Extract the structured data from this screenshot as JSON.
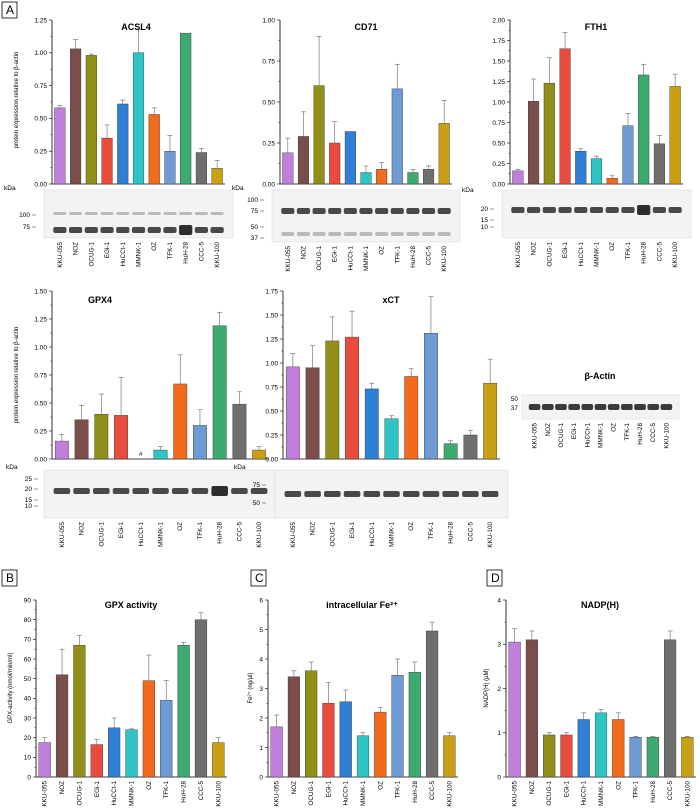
{
  "panel_labels": [
    "A",
    "B",
    "C",
    "D"
  ],
  "categories": [
    "KKU-055",
    "NOZ",
    "OCUG-1",
    "EGi-1",
    "HuCCt-1",
    "MMNK-1",
    "OZ",
    "TFK-1",
    "HuH-28",
    "CCC-5",
    "KKU-100"
  ],
  "bar_colors": [
    "#c17fdc",
    "#7a4f4b",
    "#8f8f1a",
    "#e74c3c",
    "#2f7fd6",
    "#2ec4c4",
    "#f26a1b",
    "#6e9bd3",
    "#3daa70",
    "#6f6f6f",
    "#c9a014"
  ],
  "kda_label": "kDa",
  "shared_ylabel": "protein expression relative to β-actin",
  "chart_data": [
    {
      "id": "acsl4",
      "type": "bar",
      "title": "ACSL4",
      "ylabel": "protein expression relative to β-actin",
      "ylim": [
        0,
        1.25
      ],
      "yticks": [
        "0.00",
        "0.25",
        "0.50",
        "0.75",
        "1.00",
        "1.25"
      ],
      "categories": [
        "KKU-055",
        "NOZ",
        "OCUG-1",
        "EGi-1",
        "HuCCt-1",
        "MMNK-1",
        "OZ",
        "TFK-1",
        "HuH-28",
        "CCC-5",
        "KKU-100"
      ],
      "values": [
        0.58,
        1.03,
        0.98,
        0.35,
        0.61,
        1.0,
        0.53,
        0.25,
        1.15,
        0.24,
        0.12
      ],
      "errors": [
        0.02,
        0.07,
        0.01,
        0.1,
        0.03,
        0.18,
        0.05,
        0.12,
        0.0,
        0.03,
        0.06
      ],
      "blot_markers": [
        "100",
        "75"
      ]
    },
    {
      "id": "cd71",
      "type": "bar",
      "title": "CD71",
      "ylabel": "",
      "ylim": [
        0,
        1.0
      ],
      "yticks": [
        "0.00",
        "0.25",
        "0.50",
        "0.75",
        "1.00"
      ],
      "categories": [
        "KKU-055",
        "NOZ",
        "OCUG-1",
        "EGi-1",
        "HuCCt-1",
        "MMNK-1",
        "OZ",
        "TFK-1",
        "HuH-28",
        "CCC-5",
        "KKU-100"
      ],
      "values": [
        0.19,
        0.29,
        0.6,
        0.25,
        0.32,
        0.07,
        0.09,
        0.58,
        0.07,
        0.09,
        0.37
      ],
      "errors": [
        0.09,
        0.15,
        0.3,
        0.13,
        0.0,
        0.04,
        0.04,
        0.15,
        0.02,
        0.02,
        0.14
      ],
      "blot_markers": [
        "100",
        "75",
        "50",
        "37"
      ]
    },
    {
      "id": "fth1",
      "type": "bar",
      "title": "FTH1",
      "ylabel": "",
      "ylim": [
        0,
        2.0
      ],
      "yticks": [
        "0.00",
        "0.25",
        "0.50",
        "0.75",
        "1.00",
        "1.25",
        "1.50",
        "1.75",
        "2.00"
      ],
      "categories": [
        "KKU-055",
        "NOZ",
        "OCUG-1",
        "EGi-1",
        "HuCCt-1",
        "MMNK-1",
        "OZ",
        "TFK-1",
        "HuH-28",
        "CCC-5",
        "KKU-100"
      ],
      "values": [
        0.16,
        1.01,
        1.23,
        1.65,
        0.4,
        0.31,
        0.07,
        0.71,
        1.33,
        0.49,
        1.19
      ],
      "errors": [
        0.02,
        0.27,
        0.31,
        0.2,
        0.03,
        0.03,
        0.03,
        0.15,
        0.13,
        0.1,
        0.15
      ],
      "blot_markers": [
        "20",
        "15",
        "10"
      ]
    },
    {
      "id": "gpx4",
      "type": "bar",
      "title": "GPX4",
      "ylabel": "protein expression relative to β-actin",
      "ylim": [
        0,
        1.5
      ],
      "yticks": [
        "0.00",
        "0.25",
        "0.50",
        "0.75",
        "1.00",
        "1.25",
        "1.50"
      ],
      "categories": [
        "KKU-055",
        "NOZ",
        "OCUG-1",
        "EGi-1",
        "HuCCt-1",
        "MMNK-1",
        "OZ",
        "TFK-1",
        "HuH-28",
        "CCC-5",
        "KKU-100"
      ],
      "values": [
        0.16,
        0.35,
        0.4,
        0.39,
        0,
        0.08,
        0.67,
        0.3,
        1.19,
        0.49,
        0.08
      ],
      "errors": [
        0.06,
        0.13,
        0.18,
        0.34,
        0,
        0.03,
        0.26,
        0.14,
        0.12,
        0.11,
        0.03
      ],
      "annotations": [
        {
          "category": "HuCCt-1",
          "text": "#"
        }
      ],
      "blot_markers": [
        "25",
        "20",
        "15",
        "10"
      ]
    },
    {
      "id": "xct",
      "type": "bar",
      "title": "xCT",
      "ylabel": "",
      "ylim": [
        0,
        1.75
      ],
      "yticks": [
        "0.00",
        "0.25",
        "0.50",
        "0.75",
        "1.00",
        "1.25",
        "1.50",
        "1.75"
      ],
      "categories": [
        "KKU-055",
        "NOZ",
        "OCUG-1",
        "EGi-1",
        "HuCCt-1",
        "MMNK-1",
        "OZ",
        "TFK-1",
        "HuH-28",
        "CCC-5",
        "KKU-100"
      ],
      "values": [
        0.96,
        0.95,
        1.23,
        1.27,
        0.73,
        0.42,
        0.86,
        1.31,
        0.16,
        0.25,
        0.79
      ],
      "errors": [
        0.14,
        0.23,
        0.25,
        0.27,
        0.06,
        0.03,
        0.08,
        0.38,
        0.03,
        0.05,
        0.25
      ],
      "blot_markers": [
        "75",
        "50"
      ]
    },
    {
      "id": "gpx_activity",
      "type": "bar",
      "title": "GPX activity",
      "ylabel": "GPX-activity (nmol/min/ml)",
      "ylim": [
        0,
        90
      ],
      "yticks": [
        "0",
        "10",
        "20",
        "30",
        "40",
        "50",
        "60",
        "70",
        "80",
        "90"
      ],
      "categories": [
        "KKU-055",
        "NOZ",
        "OCUG-1",
        "EGi-1",
        "HuCCt-1",
        "MMNK-1",
        "OZ",
        "TFK-1",
        "HuH-28",
        "CCC-5",
        "KKU-100"
      ],
      "values": [
        17.5,
        52,
        67,
        16.5,
        25,
        24,
        49,
        39,
        67,
        80,
        17.5
      ],
      "errors": [
        2.5,
        13,
        5,
        2.5,
        5,
        0.5,
        13,
        10,
        1.5,
        3.5,
        2.5
      ]
    },
    {
      "id": "fe2",
      "type": "bar",
      "title": "intracellular Fe²⁺",
      "ylabel": "Fe²⁺ (ng/µl)",
      "ylim": [
        0,
        6
      ],
      "yticks": [
        "0",
        "1",
        "2",
        "3",
        "4",
        "5",
        "6"
      ],
      "categories": [
        "KKU-055",
        "NOZ",
        "OCUG-1",
        "EGi-1",
        "HuCCt-1",
        "MMNK-1",
        "OZ",
        "TFK-1",
        "HuH-28",
        "CCC-5",
        "KKU-100"
      ],
      "values": [
        1.7,
        3.4,
        3.6,
        2.5,
        2.55,
        1.4,
        2.2,
        3.45,
        3.55,
        4.95,
        1.4
      ],
      "errors": [
        0.4,
        0.2,
        0.3,
        0.7,
        0.4,
        0.1,
        0.15,
        0.55,
        0.35,
        0.3,
        0.1
      ]
    },
    {
      "id": "nadph",
      "type": "bar",
      "title": "NADP(H)",
      "ylabel": "NADP(H) (µM)",
      "ylim": [
        0,
        4
      ],
      "yticks": [
        "0",
        "1",
        "2",
        "3",
        "4"
      ],
      "categories": [
        "KKU-055",
        "NOZ",
        "OCUG-1",
        "EGi-1",
        "HuCCt-1",
        "MMNK-1",
        "OZ",
        "TFK-1",
        "HuH-28",
        "CCC-5",
        "KKU-100"
      ],
      "values": [
        3.05,
        3.1,
        0.95,
        0.95,
        1.3,
        1.45,
        1.3,
        0.9,
        0.9,
        3.1,
        0.9
      ],
      "errors": [
        0.3,
        0.2,
        0.05,
        0.05,
        0.15,
        0.08,
        0.15,
        0.02,
        0.02,
        0.2,
        0.02
      ]
    }
  ],
  "actin_panel": {
    "title": "β-Actin",
    "blot_markers": [
      "50",
      "37"
    ],
    "categories": [
      "KKU-055",
      "NOZ",
      "OCUG-1",
      "EGi-1",
      "HuCCt-1",
      "MMNK-1",
      "OZ",
      "TFK-1",
      "HuH-28",
      "CCC-5",
      "KKU-100"
    ]
  }
}
